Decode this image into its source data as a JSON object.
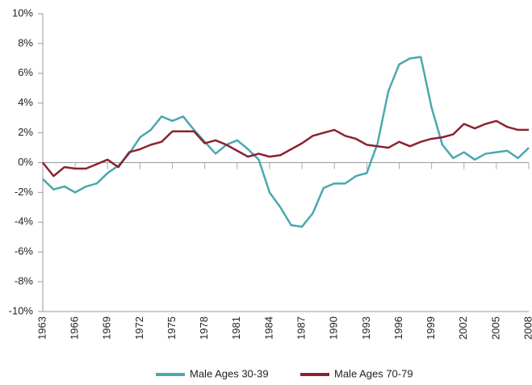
{
  "chart_data": {
    "type": "line",
    "x": [
      1963,
      1964,
      1965,
      1966,
      1967,
      1968,
      1969,
      1970,
      1971,
      1972,
      1973,
      1974,
      1975,
      1976,
      1977,
      1978,
      1979,
      1980,
      1981,
      1982,
      1983,
      1984,
      1985,
      1986,
      1987,
      1988,
      1989,
      1990,
      1991,
      1992,
      1993,
      1994,
      1995,
      1996,
      1997,
      1998,
      1999,
      2000,
      2001,
      2002,
      2003,
      2004,
      2005,
      2006,
      2007,
      2008
    ],
    "series": [
      {
        "name": "Male Ages 30-39",
        "color": "#4aa8b0",
        "values": [
          -1.1,
          -1.8,
          -1.6,
          -2.0,
          -1.6,
          -1.4,
          -0.7,
          -0.2,
          0.6,
          1.7,
          2.2,
          3.1,
          2.8,
          3.1,
          2.2,
          1.4,
          0.6,
          1.2,
          1.5,
          0.9,
          0.2,
          -2.0,
          -3.0,
          -4.2,
          -4.3,
          -3.4,
          -1.7,
          -1.4,
          -1.4,
          -0.9,
          -0.7,
          1.3,
          4.8,
          6.6,
          7.0,
          7.1,
          3.7,
          1.2,
          0.3,
          0.7,
          0.2,
          0.6,
          0.7,
          0.8,
          0.3,
          1.0
        ]
      },
      {
        "name": "Male Ages 70-79",
        "color": "#8b2232",
        "values": [
          0,
          -0.9,
          -0.3,
          -0.4,
          -0.4,
          -0.1,
          0.2,
          -0.3,
          0.7,
          0.9,
          1.2,
          1.4,
          2.1,
          2.1,
          2.1,
          1.3,
          1.5,
          1.2,
          0.8,
          0.4,
          0.6,
          0.4,
          0.5,
          0.9,
          1.3,
          1.8,
          2.0,
          2.2,
          1.8,
          1.6,
          1.2,
          1.1,
          1.0,
          1.4,
          1.1,
          1.4,
          1.6,
          1.7,
          1.9,
          2.6,
          2.3,
          2.6,
          2.8,
          2.4,
          2.2,
          2.2
        ]
      }
    ],
    "xlim": [
      1963,
      2008
    ],
    "xticks": [
      1963,
      1966,
      1969,
      1972,
      1975,
      1978,
      1981,
      1984,
      1987,
      1990,
      1993,
      1996,
      1999,
      2002,
      2005,
      2008
    ],
    "ylim": [
      -10,
      10
    ],
    "yticks": [
      {
        "value": -10,
        "label": "-10%"
      },
      {
        "value": -8,
        "label": "-8%"
      },
      {
        "value": -6,
        "label": "-6%"
      },
      {
        "value": -4,
        "label": "-4%"
      },
      {
        "value": -2,
        "label": "-2%"
      },
      {
        "value": 0,
        "label": "0%"
      },
      {
        "value": 2,
        "label": "2%"
      },
      {
        "value": 4,
        "label": "4%"
      },
      {
        "value": 6,
        "label": "6%"
      },
      {
        "value": 8,
        "label": "8%"
      },
      {
        "value": 10,
        "label": "10%"
      }
    ],
    "legend": "bottom"
  }
}
